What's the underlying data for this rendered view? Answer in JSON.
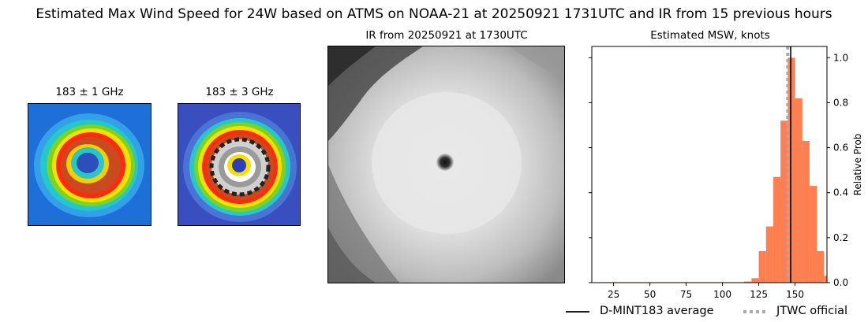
{
  "suptitle": "Estimated Max Wind Speed for 24W based on ATMS on NOAA-21 at 20250921 1731UTC and IR from 15 previous hours",
  "panels": {
    "mw1_title": "183 ± 1 GHz",
    "mw3_title": "183 ± 3 GHz",
    "ir_title": "IR from 20250921 at 1730UTC"
  },
  "colors": {
    "hist_bar": "#ff7f50",
    "average_line": "#000000",
    "official_line": "#a9a9a9"
  },
  "chart_data": {
    "type": "bar",
    "title": "Estimated MSW, knots",
    "xlabel": "",
    "ylabel": "Relative Prob",
    "xlim": [
      10,
      172
    ],
    "ylim": [
      0,
      1.05
    ],
    "x_ticks": [
      "25",
      "50",
      "75",
      "100",
      "125",
      "150"
    ],
    "y_ticks": [
      "0.0",
      "0.2",
      "0.4",
      "0.6",
      "0.8",
      "1.0"
    ],
    "y_axis_side": "right",
    "bin_width": 5,
    "bins": [
      {
        "x": 17.5,
        "value": 0.002
      },
      {
        "x": 22.5,
        "value": 0.002
      },
      {
        "x": 27.5,
        "value": 0.002
      },
      {
        "x": 32.5,
        "value": 0.002
      },
      {
        "x": 37.5,
        "value": 0.002
      },
      {
        "x": 42.5,
        "value": 0.002
      },
      {
        "x": 47.5,
        "value": 0.002
      },
      {
        "x": 52.5,
        "value": 0.002
      },
      {
        "x": 57.5,
        "value": 0.002
      },
      {
        "x": 62.5,
        "value": 0.002
      },
      {
        "x": 67.5,
        "value": 0.002
      },
      {
        "x": 72.5,
        "value": 0.002
      },
      {
        "x": 77.5,
        "value": 0.002
      },
      {
        "x": 82.5,
        "value": 0.002
      },
      {
        "x": 87.5,
        "value": 0.002
      },
      {
        "x": 92.5,
        "value": 0.002
      },
      {
        "x": 97.5,
        "value": 0.002
      },
      {
        "x": 102.5,
        "value": 0.002
      },
      {
        "x": 107.5,
        "value": 0.002
      },
      {
        "x": 112.5,
        "value": 0.002
      },
      {
        "x": 117.5,
        "value": 0.005
      },
      {
        "x": 122.5,
        "value": 0.02
      },
      {
        "x": 127.5,
        "value": 0.14
      },
      {
        "x": 132.5,
        "value": 0.25
      },
      {
        "x": 137.5,
        "value": 0.47
      },
      {
        "x": 142.5,
        "value": 0.72
      },
      {
        "x": 147.5,
        "value": 1.0
      },
      {
        "x": 152.5,
        "value": 0.82
      },
      {
        "x": 157.5,
        "value": 0.63
      },
      {
        "x": 162.5,
        "value": 0.43
      },
      {
        "x": 167.5,
        "value": 0.14
      },
      {
        "x": 172.5,
        "value": 0.03
      }
    ],
    "average_x": 147,
    "official_x": 145,
    "legend": [
      {
        "label": "D-MINT183 average",
        "style": "solid"
      },
      {
        "label": "JTWC official",
        "style": "dotted"
      }
    ],
    "legend_position": "bottom-right"
  }
}
